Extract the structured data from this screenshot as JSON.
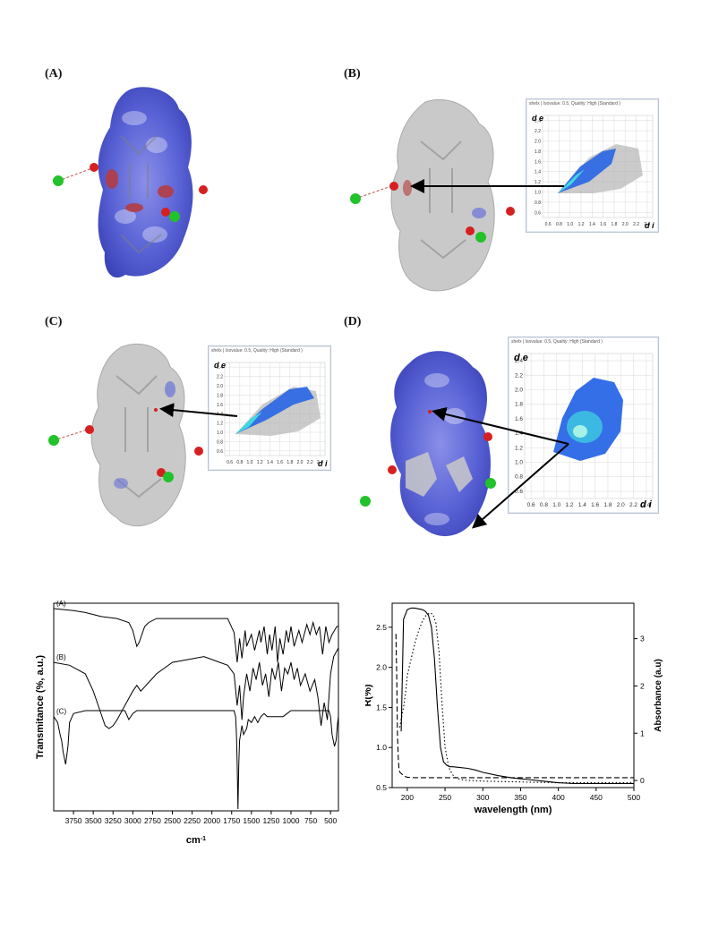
{
  "panels": {
    "a": {
      "label": "(A)"
    },
    "b": {
      "label": "(B)",
      "fp_title": "shelx | Isovalue: 0.5, Quality: High (Standard )",
      "dlabel_e": "d e",
      "dlabel_i": "d i"
    },
    "c": {
      "label": "(C)",
      "fp_title": "shelx | Isovalue: 0.5, Quality: High (Standard )",
      "dlabel_e": "d e",
      "dlabel_i": "d i"
    },
    "d": {
      "label": "(D)",
      "fp_title": "shelx | Isovalue: 0.5, Quality: High (Standard )",
      "dlabel_e": "d e",
      "dlabel_i": "d i"
    }
  },
  "fp_ticks": {
    "y": [
      "2.4",
      "2.2",
      "2.0",
      "1.8",
      "1.6",
      "1.4",
      "1.2",
      "1.0",
      "0.8",
      "0.6"
    ],
    "x": [
      "0.6",
      "0.8",
      "1.0",
      "1.2",
      "1.4",
      "1.6",
      "1.8",
      "2.0",
      "2.2",
      "2.4"
    ]
  },
  "colors": {
    "surface_blue": "#5a63d6",
    "surface_grey": "#c8c8c8",
    "chlorine": "#22c22a",
    "oxygen": "#d62020",
    "fp_blue": "#1f5fe6",
    "fp_cyan": "#3fd8e0",
    "fp_grey": "#b5b5b5"
  },
  "chart_data": [
    {
      "type": "line",
      "title": "",
      "xlabel": "cm-1",
      "ylabel": "Transmitance (%, a.u.)",
      "xlim": [
        4000,
        400
      ],
      "x_ticks": [
        "3750",
        "3500",
        "3250",
        "3000",
        "2750",
        "2500",
        "2250",
        "2000",
        "1750",
        "1500",
        "1250",
        "1000",
        "750",
        "500"
      ],
      "series": [
        {
          "name": "(A)",
          "x": [
            4000,
            3750,
            3600,
            3400,
            3200,
            3050,
            3000,
            2950,
            2920,
            2850,
            2800,
            2700,
            2500,
            2200,
            2000,
            1800,
            1720,
            1680,
            1650,
            1620,
            1580,
            1560,
            1500,
            1460,
            1400,
            1380,
            1340,
            1300,
            1270,
            1240,
            1200,
            1170,
            1140,
            1100,
            1060,
            1030,
            1000,
            960,
            900,
            860,
            800,
            760,
            720,
            680,
            640,
            600,
            560,
            520,
            480,
            450,
            420,
            400
          ],
          "y": [
            97,
            96,
            95,
            93,
            92,
            90,
            86,
            78,
            80,
            88,
            90,
            92,
            92,
            92,
            92,
            92,
            85,
            70,
            82,
            72,
            86,
            78,
            84,
            76,
            86,
            80,
            88,
            74,
            84,
            76,
            88,
            70,
            82,
            74,
            86,
            80,
            88,
            78,
            86,
            80,
            89,
            84,
            90,
            84,
            88,
            74,
            88,
            80,
            84,
            86,
            88,
            88
          ]
        },
        {
          "name": "(B)",
          "x": [
            4000,
            3800,
            3600,
            3500,
            3400,
            3350,
            3300,
            3250,
            3200,
            3100,
            3000,
            2950,
            2900,
            2800,
            2700,
            2500,
            2300,
            2100,
            2000,
            1900,
            1800,
            1720,
            1680,
            1650,
            1620,
            1600,
            1560,
            1520,
            1480,
            1440,
            1400,
            1360,
            1320,
            1280,
            1240,
            1200,
            1160,
            1120,
            1080,
            1040,
            1000,
            960,
            920,
            880,
            820,
            760,
            700,
            660,
            620,
            580,
            540,
            500,
            460,
            420,
            400
          ],
          "y": [
            70,
            69,
            66,
            60,
            52,
            48,
            47,
            48,
            50,
            55,
            60,
            62,
            60,
            63,
            66,
            70,
            71,
            72,
            71,
            70,
            69,
            66,
            55,
            62,
            50,
            58,
            66,
            60,
            68,
            64,
            70,
            62,
            66,
            58,
            68,
            64,
            70,
            60,
            68,
            66,
            70,
            64,
            68,
            62,
            66,
            60,
            64,
            58,
            48,
            56,
            50,
            66,
            72,
            74,
            75
          ]
        },
        {
          "name": "(C)",
          "x": [
            4000,
            3950,
            3920,
            3900,
            3880,
            3850,
            3820,
            3800,
            3750,
            3600,
            3400,
            3200,
            3100,
            3050,
            3000,
            2950,
            2900,
            2700,
            2500,
            2300,
            2100,
            1900,
            1800,
            1720,
            1700,
            1690,
            1680,
            1670,
            1660,
            1650,
            1620,
            1600,
            1560,
            1540,
            1500,
            1460,
            1420,
            1380,
            1340,
            1300,
            1260,
            1200,
            1150,
            1100,
            1050,
            1000,
            950,
            900,
            850,
            800,
            750,
            700,
            650,
            600,
            560,
            520,
            500,
            480,
            450,
            430,
            410,
            400
          ],
          "y": [
            36,
            34,
            30,
            28,
            24,
            20,
            26,
            34,
            37,
            38,
            38,
            38,
            38,
            35,
            37,
            38,
            38,
            38,
            38,
            38,
            38,
            38,
            38,
            38,
            36,
            30,
            20,
            5,
            20,
            28,
            33,
            30,
            32,
            35,
            34,
            36,
            34,
            36,
            37,
            36,
            36,
            36,
            36,
            36,
            37,
            38,
            38,
            38,
            38,
            38,
            38,
            38,
            38,
            38,
            38,
            38,
            36,
            30,
            26,
            28,
            34,
            36
          ]
        }
      ]
    },
    {
      "type": "line",
      "title": "",
      "xlabel": "wavelength (nm)",
      "ylabel": "R(%)",
      "y2label": "Absorbance (a.u)",
      "xlim": [
        180,
        500
      ],
      "ylim": [
        0.5,
        2.8
      ],
      "y2lim": [
        -0.15,
        3.75
      ],
      "x_ticks": [
        "200",
        "250",
        "300",
        "350",
        "400",
        "450",
        "500"
      ],
      "y_ticks": [
        "0.5",
        "1.0",
        "1.5",
        "2.0",
        "2.5"
      ],
      "y2_ticks": [
        "0",
        "1",
        "2",
        "3"
      ],
      "series": [
        {
          "name": "",
          "axis": "left",
          "style": "solid",
          "x": [
            192,
            195,
            200,
            205,
            210,
            215,
            220,
            224,
            228,
            232,
            236,
            240,
            244,
            248,
            252,
            256,
            260,
            270,
            280,
            290,
            300,
            320,
            340,
            360,
            380,
            400,
            420,
            440,
            460,
            480,
            500
          ],
          "y": [
            1.2,
            2.6,
            2.72,
            2.74,
            2.74,
            2.73,
            2.72,
            2.7,
            2.65,
            2.5,
            2.1,
            1.5,
            1.0,
            0.82,
            0.78,
            0.76,
            0.76,
            0.75,
            0.74,
            0.72,
            0.69,
            0.65,
            0.62,
            0.6,
            0.58,
            0.56,
            0.55,
            0.55,
            0.55,
            0.55,
            0.55
          ]
        },
        {
          "name": "",
          "axis": "right",
          "style": "dashed",
          "x": [
            185,
            186,
            187,
            188,
            189,
            190,
            192,
            194,
            196,
            200,
            210,
            220,
            240,
            260,
            300,
            350,
            400,
            450,
            500
          ],
          "y": [
            3.1,
            2.2,
            1.0,
            0.5,
            0.25,
            0.18,
            0.15,
            0.12,
            0.09,
            0.07,
            0.06,
            0.06,
            0.06,
            0.06,
            0.06,
            0.06,
            0.06,
            0.06,
            0.06
          ]
        },
        {
          "name": "",
          "axis": "left",
          "style": "dotted",
          "x": [
            190,
            192,
            195,
            198,
            200,
            205,
            210,
            215,
            220,
            225,
            230,
            234,
            238,
            242,
            246,
            250,
            255,
            260,
            265,
            270,
            280,
            300,
            350,
            400,
            450,
            500
          ],
          "y": [
            1.25,
            1.35,
            1.5,
            1.7,
            1.9,
            2.1,
            2.3,
            2.45,
            2.58,
            2.65,
            2.68,
            2.66,
            2.55,
            2.2,
            1.55,
            1.0,
            0.75,
            0.66,
            0.62,
            0.6,
            0.59,
            0.58,
            0.57,
            0.56,
            0.56,
            0.56
          ]
        }
      ]
    }
  ]
}
